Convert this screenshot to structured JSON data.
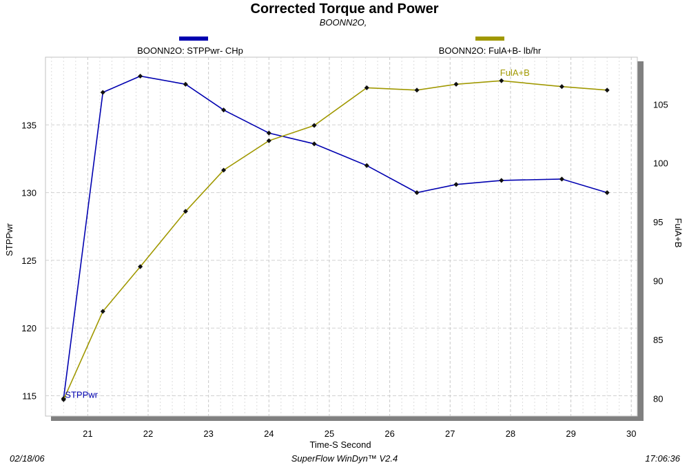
{
  "chart_data": {
    "type": "line",
    "title": "Corrected Torque and Power",
    "subtitle": "BOONN2O,",
    "xlabel": "Time-S Second",
    "ylabel_left": "STPPwr",
    "ylabel_right": "FulA+B",
    "xlim": [
      20.3,
      30.1
    ],
    "ylim_left": [
      113.5,
      140
    ],
    "ylim_right": [
      78.5,
      109
    ],
    "x_ticks": [
      "21",
      "22",
      "23",
      "24",
      "25",
      "26",
      "27",
      "28",
      "29",
      "30"
    ],
    "y_left_ticks": [
      "115",
      "120",
      "125",
      "130",
      "135"
    ],
    "y_right_ticks": [
      "80",
      "85",
      "90",
      "95",
      "100",
      "105"
    ],
    "grid": true,
    "legend_position": "top",
    "series": [
      {
        "name": "BOONN2O: STPPwr- CHp",
        "label": "STPPwr",
        "axis": "left",
        "color": "#0000b0",
        "x": [
          20.6,
          21.25,
          21.87,
          22.62,
          23.25,
          24.0,
          24.75,
          25.62,
          26.45,
          27.1,
          27.85,
          28.85,
          29.6
        ],
        "y": [
          114.8,
          137.4,
          138.6,
          138.0,
          136.1,
          134.4,
          133.6,
          132.0,
          130.0,
          130.6,
          130.9,
          131.0,
          130.0
        ]
      },
      {
        "name": "BOONN2O: FulA+B- lb/hr",
        "label": "FulA+B",
        "axis": "right",
        "color": "#a09800",
        "x": [
          20.6,
          21.25,
          21.87,
          22.62,
          23.25,
          24.0,
          24.75,
          25.62,
          26.45,
          27.1,
          27.85,
          28.85,
          29.6
        ],
        "y": [
          79.9,
          87.4,
          91.2,
          95.9,
          99.4,
          101.9,
          103.2,
          106.4,
          106.2,
          106.7,
          107.0,
          106.5,
          106.2
        ]
      }
    ]
  },
  "footer": {
    "date": "02/18/06",
    "software": "SuperFlow WinDyn™ V2.4",
    "time": "17:06:36"
  }
}
